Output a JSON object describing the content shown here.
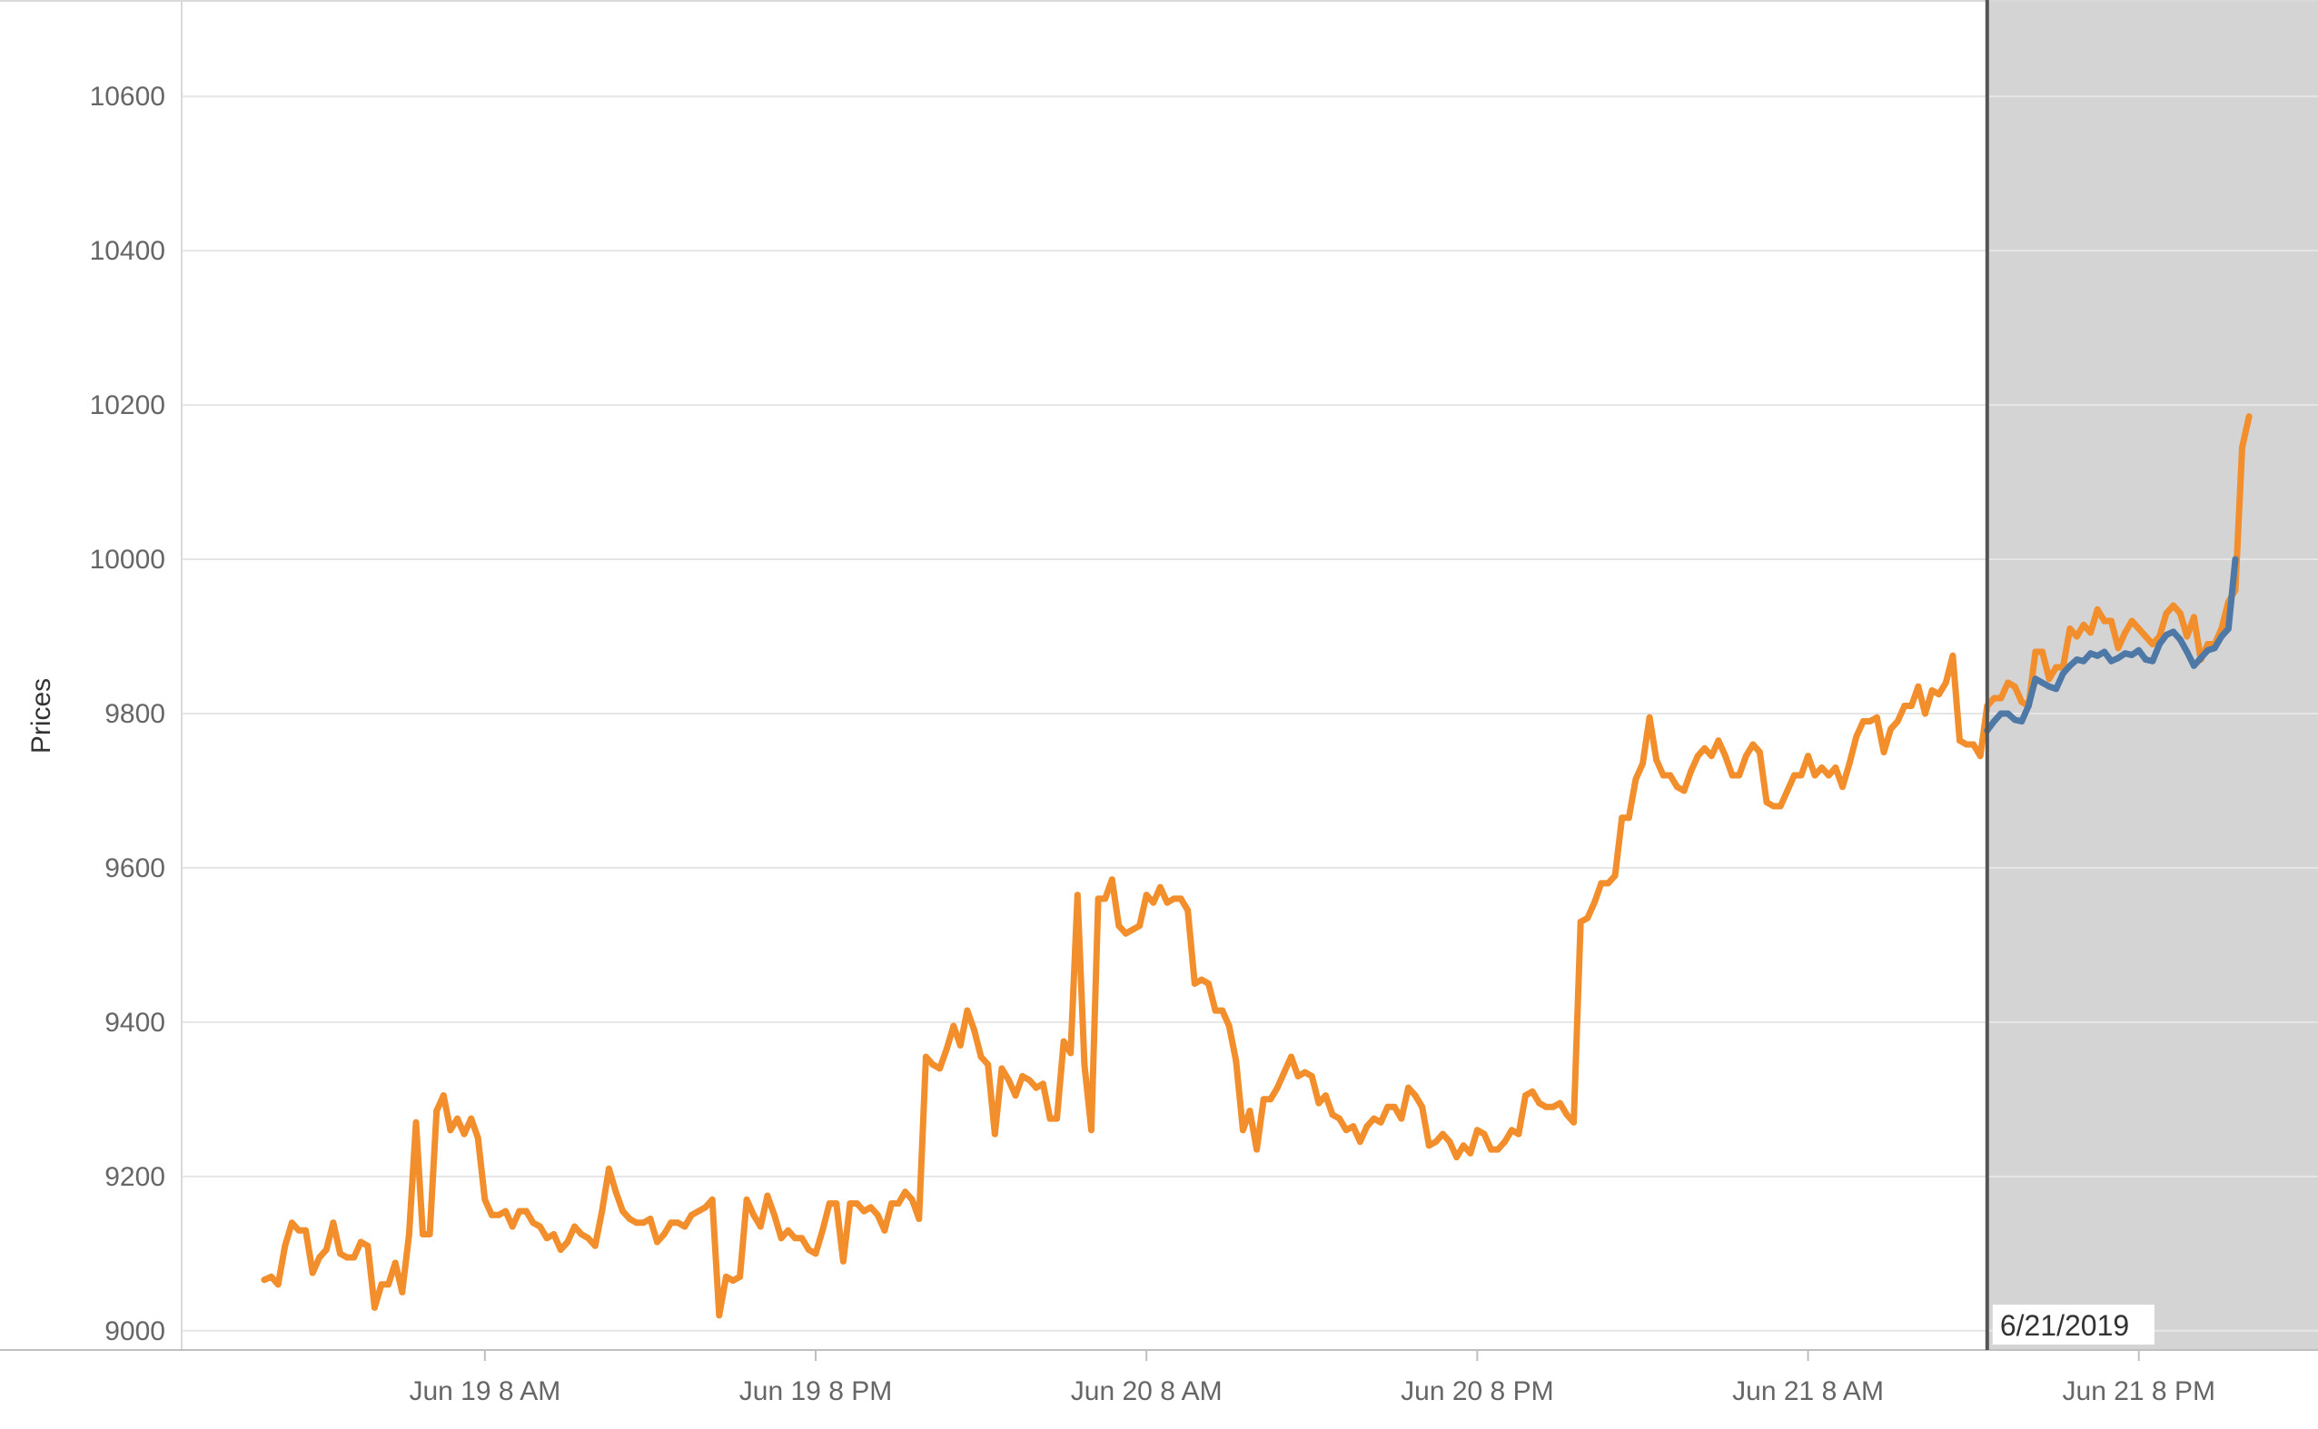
{
  "chart_data": {
    "type": "line",
    "ylabel": "Prices",
    "ylim": [
      8975,
      10725
    ],
    "y_ticks": [
      9000,
      9200,
      9400,
      9600,
      9800,
      10000,
      10200,
      10400,
      10600
    ],
    "x_range": [
      "2019-06-18T21:00",
      "2019-06-22T02:30"
    ],
    "x_ticks": [
      {
        "t": "2019-06-19T08:00",
        "label": "Jun 19 8 AM"
      },
      {
        "t": "2019-06-19T20:00",
        "label": "Jun 19 8 PM"
      },
      {
        "t": "2019-06-20T08:00",
        "label": "Jun 20 8 AM"
      },
      {
        "t": "2019-06-20T20:00",
        "label": "Jun 20 8 PM"
      },
      {
        "t": "2019-06-21T08:00",
        "label": "Jun 21 8 AM"
      },
      {
        "t": "2019-06-21T20:00",
        "label": "Jun 21 8 PM"
      }
    ],
    "reference_line": {
      "t": "2019-06-21T14:30",
      "label": "6/21/2019"
    },
    "forecast_band": {
      "from": "2019-06-21T14:30",
      "to": "2019-06-22T02:30",
      "color": "#d4d4d4"
    },
    "grid": true,
    "legend": "none",
    "series": [
      {
        "color": "#f28e2b",
        "x_start": "2019-06-19T00:00",
        "step_minutes": 15,
        "values": [
          9066,
          9070,
          9060,
          9110,
          9140,
          9130,
          9130,
          9075,
          9095,
          9105,
          9140,
          9100,
          9095,
          9095,
          9115,
          9110,
          9030,
          9060,
          9060,
          9088,
          9050,
          9125,
          9270,
          9125,
          9125,
          9285,
          9305,
          9260,
          9275,
          9255,
          9275,
          9250,
          9170,
          9150,
          9150,
          9155,
          9135,
          9155,
          9155,
          9140,
          9135,
          9120,
          9125,
          9105,
          9115,
          9135,
          9125,
          9120,
          9110,
          9155,
          9210,
          9180,
          9155,
          9145,
          9140,
          9140,
          9145,
          9115,
          9125,
          9140,
          9140,
          9135,
          9150,
          9155,
          9160,
          9170,
          9020,
          9070,
          9065,
          9070,
          9170,
          9150,
          9135,
          9175,
          9150,
          9120,
          9130,
          9120,
          9120,
          9105,
          9100,
          9130,
          9165,
          9165,
          9090,
          9165,
          9165,
          9155,
          9160,
          9150,
          9130,
          9165,
          9165,
          9180,
          9170,
          9145,
          9355,
          9345,
          9340,
          9365,
          9395,
          9370,
          9415,
          9390,
          9355,
          9345,
          9255,
          9340,
          9325,
          9305,
          9330,
          9325,
          9315,
          9320,
          9275,
          9275,
          9375,
          9360,
          9565,
          9345,
          9260,
          9560,
          9560,
          9585,
          9525,
          9515,
          9520,
          9525,
          9565,
          9555,
          9575,
          9555,
          9560,
          9560,
          9545,
          9450,
          9455,
          9450,
          9415,
          9415,
          9395,
          9350,
          9260,
          9285,
          9235,
          9300,
          9300,
          9315,
          9335,
          9355,
          9330,
          9335,
          9330,
          9295,
          9305,
          9280,
          9275,
          9260,
          9265,
          9245,
          9265,
          9275,
          9270,
          9290,
          9290,
          9275,
          9315,
          9305,
          9290,
          9240,
          9245,
          9255,
          9245,
          9225,
          9240,
          9230,
          9260,
          9255,
          9235,
          9235,
          9245,
          9260,
          9255,
          9305,
          9310,
          9295,
          9290,
          9290,
          9295,
          9280,
          9270,
          9530,
          9535,
          9555,
          9580,
          9580,
          9590,
          9665,
          9665,
          9715,
          9735,
          9795,
          9740,
          9720,
          9720,
          9705,
          9700,
          9725,
          9745,
          9755,
          9745,
          9765,
          9745,
          9720,
          9720,
          9745,
          9760,
          9750,
          9685,
          9680,
          9680,
          9700,
          9720,
          9720,
          9745,
          9720,
          9730,
          9720,
          9730,
          9705,
          9735,
          9770,
          9790,
          9790,
          9795,
          9750,
          9780,
          9790,
          9810,
          9810,
          9835,
          9800,
          9830,
          9825,
          9840,
          9875,
          9765,
          9760,
          9760,
          9745,
          9810,
          9820,
          9820,
          9840,
          9835,
          9815,
          9810,
          9880,
          9880,
          9845,
          9860,
          9860,
          9910,
          9900,
          9915,
          9905,
          9935,
          9920,
          9920,
          9885,
          9905,
          9920,
          9910,
          9900,
          9890,
          9900,
          9930,
          9940,
          9930,
          9900,
          9925,
          9870,
          9890,
          9890,
          9910,
          9945,
          9960,
          10145,
          10185
        ]
      },
      {
        "color": "#4e79a7",
        "x_start": "2019-06-21T14:30",
        "step_minutes": 15,
        "values": [
          9778,
          9790,
          9800,
          9800,
          9792,
          9790,
          9810,
          9845,
          9840,
          9835,
          9832,
          9852,
          9862,
          9870,
          9868,
          9878,
          9875,
          9880,
          9868,
          9872,
          9878,
          9876,
          9882,
          9870,
          9868,
          9890,
          9902,
          9906,
          9896,
          9880,
          9862,
          9872,
          9882,
          9885,
          9900,
          9910,
          10000
        ]
      }
    ]
  }
}
